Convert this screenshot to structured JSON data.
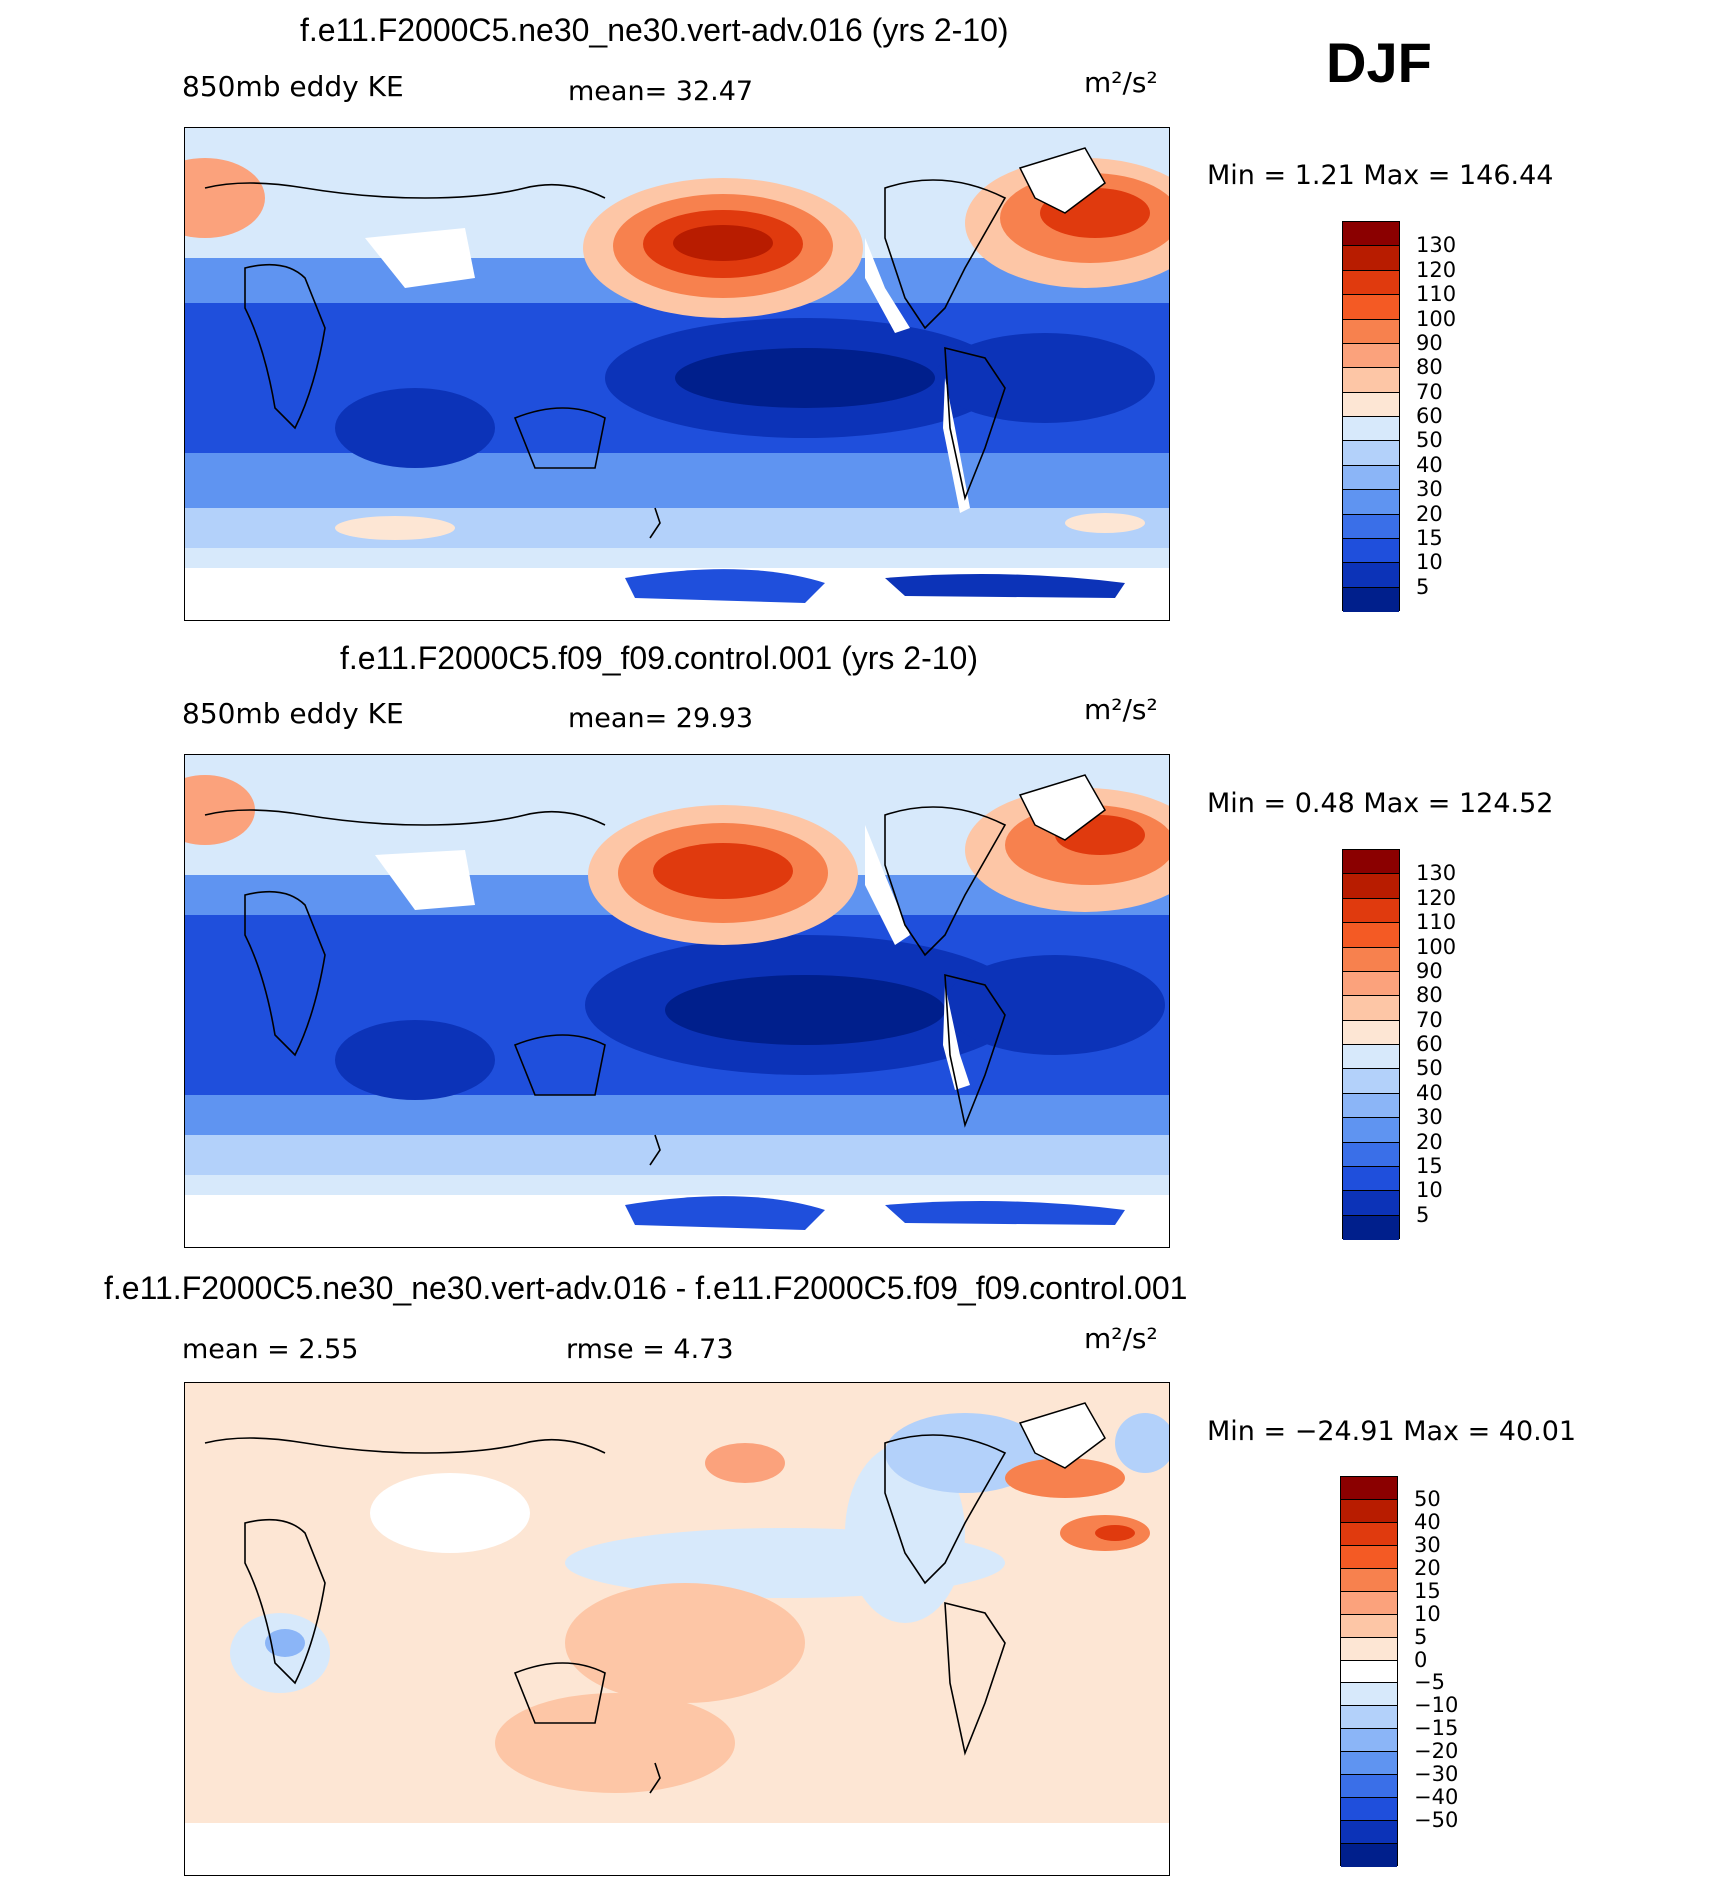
{
  "season": "DJF",
  "panels": [
    {
      "title": "f.e11.F2000C5.ne30_ne30.vert-adv.016 (yrs 2-10)",
      "left_label": "850mb eddy KE",
      "center_label": "mean=   32.47",
      "unit": "m²/s²",
      "minmax": "Min  =     1.21  Max  =  146.44",
      "colorbar": {
        "labels": [
          "130",
          "120",
          "110",
          "100",
          "90",
          "80",
          "70",
          "60",
          "50",
          "40",
          "30",
          "20",
          "15",
          "10",
          "5"
        ],
        "colors": [
          "#8b0000",
          "#b81c00",
          "#e03a0e",
          "#f45a24",
          "#f7814e",
          "#fba27c",
          "#fdc6a6",
          "#fde6d4",
          "#d7e9fb",
          "#b3d1fa",
          "#8bb5f7",
          "#5f94f1",
          "#3a6fe8",
          "#1f4fdc",
          "#0c33b8",
          "#001f8c"
        ]
      },
      "chart_data": {
        "type": "heatmap",
        "title": "f.e11.F2000C5.ne30_ne30.vert-adv.016 (yrs 2-10)",
        "variable": "850mb eddy KE",
        "units": "m²/s²",
        "mean": 32.47,
        "min": 1.21,
        "max": 146.44,
        "contour_levels": [
          5,
          10,
          15,
          20,
          30,
          40,
          50,
          60,
          70,
          80,
          90,
          100,
          110,
          120,
          130
        ]
      }
    },
    {
      "title": "f.e11.F2000C5.f09_f09.control.001 (yrs 2-10)",
      "left_label": "850mb eddy KE",
      "center_label": "mean=   29.93",
      "unit": "m²/s²",
      "minmax": "Min  =     0.48  Max  =  124.52",
      "colorbar": {
        "labels": [
          "130",
          "120",
          "110",
          "100",
          "90",
          "80",
          "70",
          "60",
          "50",
          "40",
          "30",
          "20",
          "15",
          "10",
          "5"
        ],
        "colors": [
          "#8b0000",
          "#b81c00",
          "#e03a0e",
          "#f45a24",
          "#f7814e",
          "#fba27c",
          "#fdc6a6",
          "#fde6d4",
          "#d7e9fb",
          "#b3d1fa",
          "#8bb5f7",
          "#5f94f1",
          "#3a6fe8",
          "#1f4fdc",
          "#0c33b8",
          "#001f8c"
        ]
      },
      "chart_data": {
        "type": "heatmap",
        "title": "f.e11.F2000C5.f09_f09.control.001 (yrs 2-10)",
        "variable": "850mb eddy KE",
        "units": "m²/s²",
        "mean": 29.93,
        "min": 0.48,
        "max": 124.52,
        "contour_levels": [
          5,
          10,
          15,
          20,
          30,
          40,
          50,
          60,
          70,
          80,
          90,
          100,
          110,
          120,
          130
        ]
      }
    },
    {
      "title": "f.e11.F2000C5.ne30_ne30.vert-adv.016 - f.e11.F2000C5.f09_f09.control.001",
      "left_label": "mean  =     2.55",
      "center_label": "rmse  =     4.73",
      "unit": "m²/s²",
      "minmax": "Min  =  −24.91  Max  =    40.01",
      "colorbar": {
        "labels": [
          "50",
          "40",
          "30",
          "20",
          "15",
          "10",
          "5",
          "0",
          "−5",
          "−10",
          "−15",
          "−20",
          "−30",
          "−40",
          "−50"
        ],
        "colors": [
          "#8b0000",
          "#b81c00",
          "#e03a0e",
          "#f45a24",
          "#f7814e",
          "#fba27c",
          "#fdc6a6",
          "#fde6d4",
          "#ffffff",
          "#d7e9fb",
          "#b3d1fa",
          "#8bb5f7",
          "#5f94f1",
          "#3a6fe8",
          "#1f4fdc",
          "#0c33b8",
          "#001f8c"
        ]
      },
      "chart_data": {
        "type": "heatmap",
        "title": "f.e11.F2000C5.ne30_ne30.vert-adv.016 - f.e11.F2000C5.f09_f09.control.001",
        "units": "m²/s²",
        "mean": 2.55,
        "rmse": 4.73,
        "min": -24.91,
        "max": 40.01,
        "contour_levels": [
          -50,
          -40,
          -30,
          -20,
          -15,
          -10,
          -5,
          0,
          5,
          10,
          15,
          20,
          30,
          40,
          50
        ]
      }
    }
  ]
}
